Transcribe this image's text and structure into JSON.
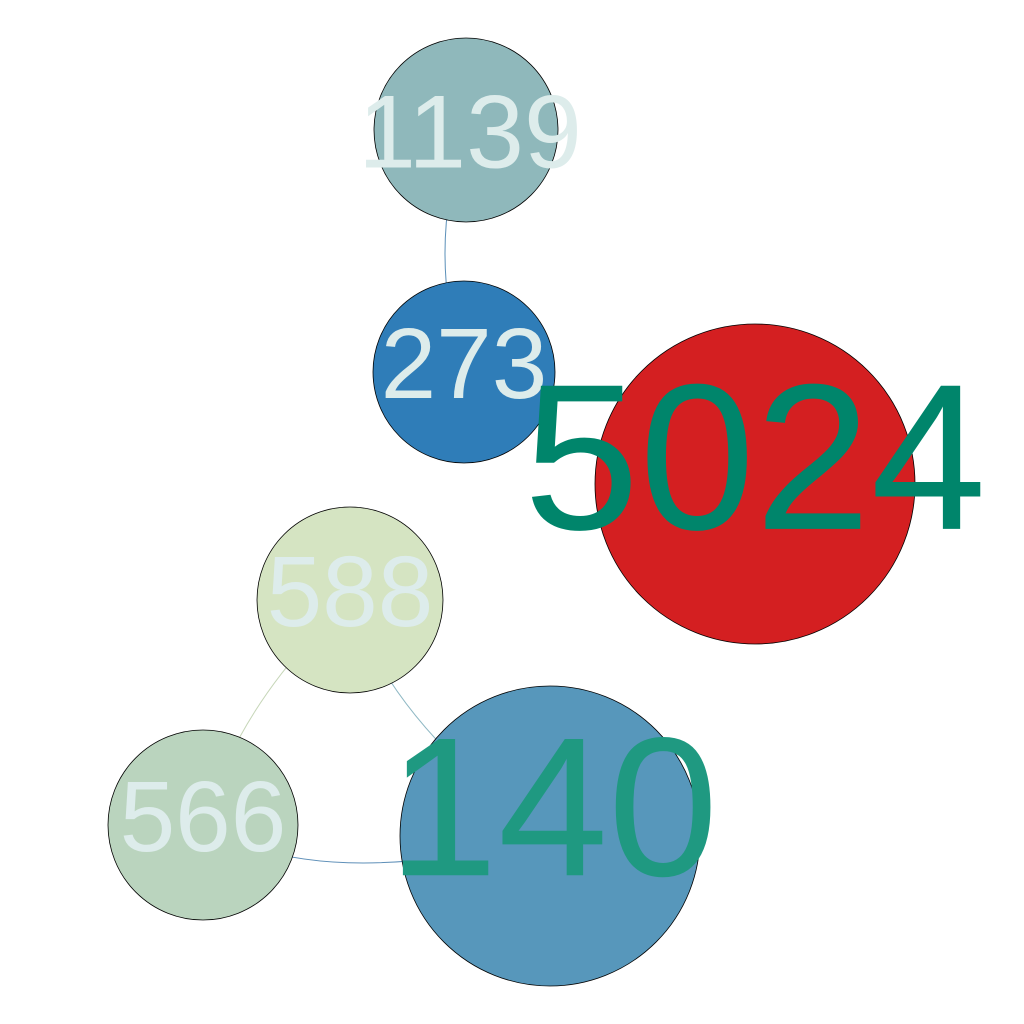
{
  "nodes": [
    {
      "id": "n1139",
      "label": "1139",
      "fill": "#8fb8bb",
      "label_color": "#ddeceb"
    },
    {
      "id": "n273",
      "label": "273",
      "fill": "#2f7db8",
      "label_color": "#ddeceb"
    },
    {
      "id": "n5024",
      "label": "5024",
      "fill": "#d41f21",
      "label_color": "#00856b"
    },
    {
      "id": "n588",
      "label": "588",
      "fill": "#d5e4c2",
      "label_color": "#ddeceb"
    },
    {
      "id": "n566",
      "label": "566",
      "fill": "#bad4be",
      "label_color": "#ddeceb"
    },
    {
      "id": "n140",
      "label": "140",
      "fill": "#5797bb",
      "label_color": "#1f9981"
    }
  ],
  "edges": [
    {
      "from": "n1139",
      "to": "n273",
      "color": "#5a8fb8"
    },
    {
      "from": "n588",
      "to": "n566",
      "color": "#c6d6b8"
    },
    {
      "from": "n588",
      "to": "n140",
      "color": "#8fb8c4"
    },
    {
      "from": "n566",
      "to": "n140",
      "color": "#5e8fb8"
    }
  ]
}
